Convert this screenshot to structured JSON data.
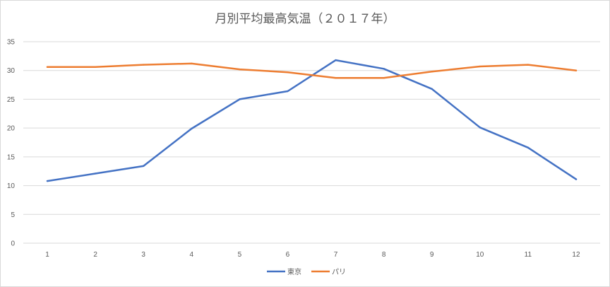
{
  "chart_data": {
    "type": "line",
    "title": "月別平均最高気温（２０１７年）",
    "categories": [
      "1",
      "2",
      "3",
      "4",
      "5",
      "6",
      "7",
      "8",
      "9",
      "10",
      "11",
      "12"
    ],
    "series": [
      {
        "name": "東京",
        "color": "#4472c4",
        "values": [
          10.8,
          12.1,
          13.4,
          19.9,
          25.0,
          26.4,
          31.8,
          30.3,
          26.8,
          20.1,
          16.6,
          11.1
        ]
      },
      {
        "name": "パリ",
        "color": "#ed7d31",
        "values": [
          30.6,
          30.6,
          31.0,
          31.2,
          30.2,
          29.7,
          28.7,
          28.7,
          29.8,
          30.7,
          31.0,
          30.0
        ]
      }
    ],
    "ylim": [
      0,
      35
    ],
    "yticks": [
      "0",
      "5",
      "10",
      "15",
      "20",
      "25",
      "30",
      "35"
    ],
    "grid": true,
    "legend_position": "bottom"
  }
}
